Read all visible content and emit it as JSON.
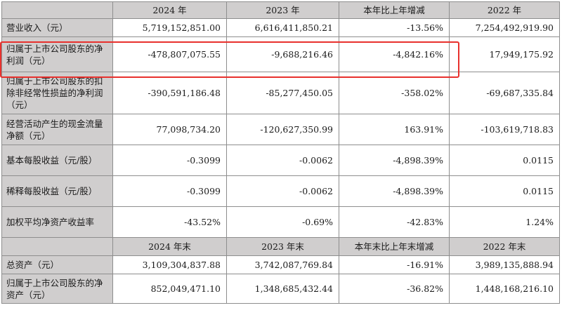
{
  "header1": [
    "2024 年",
    "2023 年",
    "本年比上年增减",
    "2022 年"
  ],
  "rows1": [
    {
      "label": "营业收入（元）",
      "values": [
        "5,719,152,851.00",
        "6,616,411,850.21",
        "-13.56%",
        "7,254,492,919.90"
      ]
    },
    {
      "label": "归属于上市公司股东的净利润（元）",
      "values": [
        "-478,807,075.55",
        "-9,688,216.46",
        "-4,842.16%",
        "17,949,175.92"
      ]
    },
    {
      "label": "归属于上市公司股东的扣除非经常性损益的净利润（元）",
      "values": [
        "-390,591,186.48",
        "-85,277,450.05",
        "-358.02%",
        "-69,687,335.84"
      ]
    },
    {
      "label": "经营活动产生的现金流量净额（元）",
      "values": [
        "77,098,734.20",
        "-120,627,350.99",
        "163.91%",
        "-103,619,718.83"
      ]
    },
    {
      "label": "基本每股收益（元/股）",
      "values": [
        "-0.3099",
        "-0.0062",
        "-4,898.39%",
        "0.0115"
      ]
    },
    {
      "label": "稀释每股收益（元/股）",
      "values": [
        "-0.3099",
        "-0.0062",
        "-4,898.39%",
        "0.0115"
      ]
    },
    {
      "label": "加权平均净资产收益率",
      "values": [
        "-43.52%",
        "-0.69%",
        "-42.83%",
        "1.24%"
      ]
    }
  ],
  "header2": [
    "2024 年末",
    "2023 年末",
    "本年末比上年末增减",
    "2022 年末"
  ],
  "rows2": [
    {
      "label": "总资产（元）",
      "values": [
        "3,109,304,837.88",
        "3,742,087,769.84",
        "-16.91%",
        "3,989,135,888.94"
      ]
    },
    {
      "label": "归属于上市公司股东的净资产（元）",
      "values": [
        "852,049,471.10",
        "1,348,685,432.44",
        "-36.82%",
        "1,448,168,216.10"
      ]
    }
  ],
  "highlight_color": "#e8312d"
}
